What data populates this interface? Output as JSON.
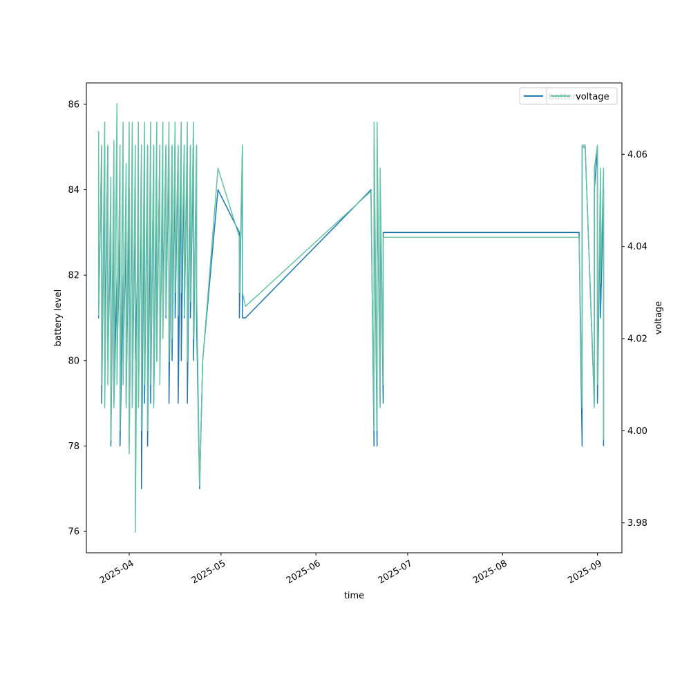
{
  "chart_data": {
    "type": "line",
    "xlabel": "time",
    "ylabel": "battery level",
    "y2label": "voltage",
    "xlim": [
      "2025-03-18",
      "2025-09-09"
    ],
    "ylim": [
      75.5,
      86.5
    ],
    "y2lim": [
      3.9735,
      4.0755
    ],
    "x_ticks": [
      "2025-04-01",
      "2025-05-01",
      "2025-06-01",
      "2025-07-01",
      "2025-08-01",
      "2025-09-01"
    ],
    "x_tick_labels": [
      "2025-04",
      "2025-05",
      "2025-06",
      "2025-07",
      "2025-08",
      "2025-09"
    ],
    "y_ticks": [
      76,
      78,
      80,
      82,
      84,
      86
    ],
    "y2_ticks": [
      3.98,
      4.0,
      4.02,
      4.04,
      4.06
    ],
    "y2_tick_labels": [
      "3.98",
      "4.00",
      "4.02",
      "4.04",
      "4.06"
    ],
    "legend_position": "top-right",
    "grid": false,
    "series": [
      {
        "name": "battery",
        "axis": "left",
        "color": "#1f77b4",
        "x": [
          "2025-03-22",
          "2025-03-22",
          "2025-03-23",
          "2025-03-23",
          "2025-03-24",
          "2025-03-24",
          "2025-03-25",
          "2025-03-25",
          "2025-03-26",
          "2025-03-26",
          "2025-03-27",
          "2025-03-27",
          "2025-03-28",
          "2025-03-28",
          "2025-03-29",
          "2025-03-29",
          "2025-03-30",
          "2025-03-30",
          "2025-03-31",
          "2025-03-31",
          "2025-04-01",
          "2025-04-01",
          "2025-04-02",
          "2025-04-02",
          "2025-04-03",
          "2025-04-03",
          "2025-04-04",
          "2025-04-04",
          "2025-04-05",
          "2025-04-05",
          "2025-04-06",
          "2025-04-06",
          "2025-04-07",
          "2025-04-07",
          "2025-04-08",
          "2025-04-08",
          "2025-04-09",
          "2025-04-09",
          "2025-04-10",
          "2025-04-10",
          "2025-04-11",
          "2025-04-11",
          "2025-04-12",
          "2025-04-12",
          "2025-04-13",
          "2025-04-13",
          "2025-04-14",
          "2025-04-14",
          "2025-04-15",
          "2025-04-15",
          "2025-04-16",
          "2025-04-16",
          "2025-04-17",
          "2025-04-17",
          "2025-04-18",
          "2025-04-18",
          "2025-04-19",
          "2025-04-19",
          "2025-04-20",
          "2025-04-20",
          "2025-04-21",
          "2025-04-21",
          "2025-04-22",
          "2025-04-22",
          "2025-04-23",
          "2025-04-23",
          "2025-04-24",
          "2025-04-25",
          "2025-04-30",
          "2025-05-07",
          "2025-05-07",
          "2025-05-08",
          "2025-05-08",
          "2025-05-09",
          "2025-06-19",
          "2025-06-20",
          "2025-06-20",
          "2025-06-21",
          "2025-06-21",
          "2025-06-22",
          "2025-06-22",
          "2025-06-23",
          "2025-06-23",
          "2025-08-26",
          "2025-08-27",
          "2025-08-27",
          "2025-08-28",
          "2025-08-31",
          "2025-08-31",
          "2025-09-01",
          "2025-09-01",
          "2025-09-02",
          "2025-09-02",
          "2025-09-03",
          "2025-09-03"
        ],
        "y": [
          84.5,
          81,
          85,
          79,
          85,
          80,
          85,
          80,
          83,
          78,
          84,
          79,
          82,
          80,
          83,
          78,
          82,
          80,
          83,
          79,
          84,
          78,
          85,
          79,
          84,
          80,
          83,
          79,
          84,
          77,
          85,
          79,
          85,
          78,
          84,
          79,
          85,
          79,
          84,
          80,
          85,
          80,
          84,
          81,
          85,
          81,
          85,
          79,
          85,
          80,
          85,
          81,
          85,
          79,
          85,
          80,
          85,
          81,
          85,
          79,
          85,
          81,
          85,
          80,
          85,
          81,
          77,
          80,
          84,
          83,
          81,
          85,
          81,
          81,
          84,
          78,
          85,
          78,
          85,
          79,
          84,
          79,
          83,
          83,
          78,
          85,
          85,
          79,
          84,
          85,
          79,
          84,
          81,
          84,
          78
        ]
      },
      {
        "name": "voltage",
        "axis": "right",
        "color": "#66c2a5",
        "x": [
          "2025-03-22",
          "2025-03-22",
          "2025-03-23",
          "2025-03-23",
          "2025-03-24",
          "2025-03-24",
          "2025-03-25",
          "2025-03-25",
          "2025-03-26",
          "2025-03-26",
          "2025-03-27",
          "2025-03-27",
          "2025-03-28",
          "2025-03-28",
          "2025-03-29",
          "2025-03-29",
          "2025-03-30",
          "2025-03-30",
          "2025-03-31",
          "2025-03-31",
          "2025-04-01",
          "2025-04-01",
          "2025-04-02",
          "2025-04-02",
          "2025-04-03",
          "2025-04-03",
          "2025-04-04",
          "2025-04-04",
          "2025-04-05",
          "2025-04-05",
          "2025-04-06",
          "2025-04-06",
          "2025-04-07",
          "2025-04-07",
          "2025-04-08",
          "2025-04-08",
          "2025-04-09",
          "2025-04-09",
          "2025-04-10",
          "2025-04-10",
          "2025-04-11",
          "2025-04-11",
          "2025-04-12",
          "2025-04-12",
          "2025-04-13",
          "2025-04-13",
          "2025-04-14",
          "2025-04-14",
          "2025-04-15",
          "2025-04-15",
          "2025-04-16",
          "2025-04-16",
          "2025-04-17",
          "2025-04-17",
          "2025-04-18",
          "2025-04-18",
          "2025-04-19",
          "2025-04-19",
          "2025-04-20",
          "2025-04-20",
          "2025-04-21",
          "2025-04-21",
          "2025-04-22",
          "2025-04-22",
          "2025-04-23",
          "2025-04-23",
          "2025-04-24",
          "2025-04-25",
          "2025-04-30",
          "2025-05-07",
          "2025-05-07",
          "2025-05-08",
          "2025-05-08",
          "2025-05-09",
          "2025-06-19",
          "2025-06-20",
          "2025-06-20",
          "2025-06-21",
          "2025-06-21",
          "2025-06-22",
          "2025-06-22",
          "2025-06-23",
          "2025-06-23",
          "2025-08-26",
          "2025-08-27",
          "2025-08-27",
          "2025-08-28",
          "2025-08-31",
          "2025-08-31",
          "2025-09-01",
          "2025-09-01",
          "2025-09-02",
          "2025-09-02",
          "2025-09-03",
          "2025-09-03"
        ],
        "y": [
          4.065,
          4.025,
          4.062,
          4.01,
          4.067,
          4.005,
          4.062,
          4.01,
          4.055,
          3.998,
          4.063,
          4.005,
          4.071,
          4.01,
          4.062,
          4.0,
          4.067,
          4.01,
          4.058,
          4.005,
          4.067,
          3.995,
          4.067,
          4.005,
          4.062,
          3.978,
          4.067,
          4.005,
          4.062,
          4.0,
          4.067,
          4.01,
          4.062,
          4.0,
          4.067,
          4.01,
          4.062,
          4.005,
          4.067,
          4.015,
          4.062,
          4.01,
          4.067,
          4.02,
          4.062,
          4.025,
          4.067,
          4.015,
          4.062,
          4.02,
          4.067,
          4.03,
          4.062,
          4.025,
          4.067,
          4.03,
          4.062,
          4.025,
          4.067,
          4.015,
          4.062,
          4.028,
          4.067,
          4.02,
          4.062,
          4.032,
          3.988,
          4.015,
          4.057,
          4.042,
          4.03,
          4.062,
          4.03,
          4.027,
          4.052,
          4.0,
          4.067,
          4.0,
          4.067,
          4.005,
          4.057,
          4.01,
          4.042,
          4.042,
          4.005,
          4.062,
          4.062,
          4.005,
          4.057,
          4.062,
          4.01,
          4.057,
          4.032,
          4.057,
          3.998
        ]
      }
    ]
  }
}
